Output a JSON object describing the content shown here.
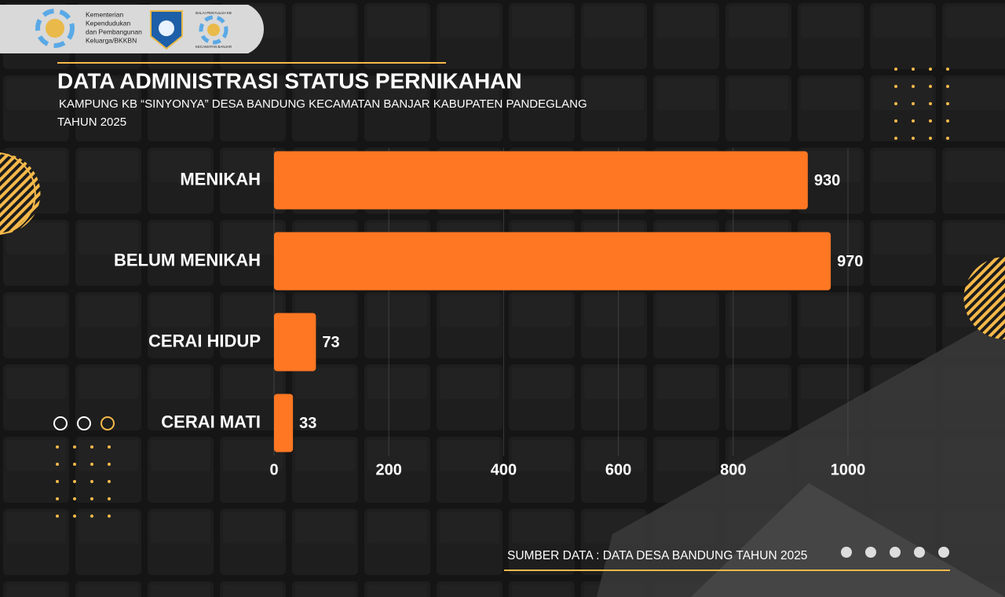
{
  "logo_text": [
    "Kementerian",
    "Kependudukan",
    "dan Pembangunan",
    "Keluarga/BKKBN"
  ],
  "logo2_text": [
    "BALAI PENYULUH KB",
    "KECAMATAN BANJAR"
  ],
  "chart_data": {
    "type": "bar",
    "orientation": "horizontal",
    "title": "DATA ADMINISTRASI STATUS PERNIKAHAN",
    "subtitle": [
      "KAMPUNG KB “SINYONYA” DESA BANDUNG KECAMATAN BANJAR KABUPATEN PANDEGLANG",
      "TAHUN 2025"
    ],
    "categories": [
      "MENIKAH",
      "BELUM MENIKAH",
      "CERAI HIDUP",
      "CERAI MATI"
    ],
    "values": [
      930,
      970,
      73,
      33
    ],
    "color": "#ff7722",
    "xlim": [
      0,
      1000
    ],
    "xticks": [
      0,
      200,
      400,
      600,
      800,
      1000
    ],
    "grid": true,
    "source": "SUMBER DATA : DATA DESA BANDUNG TAHUN 2025"
  }
}
